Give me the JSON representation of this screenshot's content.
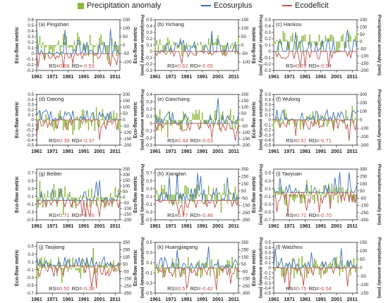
{
  "legend": {
    "precip_label": "Precipitation anomaly",
    "surplus_label": "Ecosurplus",
    "deficit_label": "Ecodeficit",
    "precip_color": "#8db83c",
    "surplus_color": "#3b6fb6",
    "deficit_color": "#c0504d"
  },
  "axis_text": {
    "left_label": "Eco-flow metric",
    "right_label": "Precipitation anomaly (mm)",
    "rs_prefix": "RS=",
    "rd_prefix": "RD="
  },
  "chart_data": [
    {
      "type": "line",
      "title": "(a) Pingshan",
      "rs": "0.69",
      "rd": "-0.53",
      "x_ticks": [
        "1961",
        "1971",
        "1981",
        "1991",
        "2001",
        "2011"
      ],
      "x_range": [
        1961,
        2014
      ],
      "left_ticks": [
        -0.3,
        -0.2,
        -0.1,
        0,
        0.1,
        0.2,
        0.3,
        0.4,
        0.5,
        0.6
      ],
      "left_range": [
        -0.3,
        0.6
      ],
      "right_ticks": [
        -100,
        -50,
        0,
        50,
        100,
        150
      ],
      "right_range": [
        -150,
        150
      ]
    },
    {
      "type": "line",
      "title": "(b) Yichang",
      "rs": "0.62",
      "rd": "-0.65",
      "x_ticks": [
        "1961",
        "1971",
        "1981",
        "1991",
        "2001",
        "2011"
      ],
      "x_range": [
        1961,
        2014
      ],
      "left_ticks": [
        -0.3,
        -0.2,
        -0.1,
        0,
        0.1,
        0.2,
        0.3,
        0.4,
        0.5
      ],
      "left_range": [
        -0.3,
        0.5
      ],
      "right_ticks": [
        -100,
        -50,
        0,
        50,
        100,
        150
      ],
      "right_range": [
        -150,
        150
      ]
    },
    {
      "type": "line",
      "title": "(c) Hankou",
      "rs": "0.70",
      "rd": "-0.54",
      "x_ticks": [
        "1961",
        "1971",
        "1981",
        "1991",
        "2001",
        "2011"
      ],
      "x_range": [
        1961,
        2014
      ],
      "left_ticks": [
        -0.3,
        -0.2,
        -0.1,
        0,
        0.1,
        0.2,
        0.3,
        0.4,
        0.5
      ],
      "left_range": [
        -0.3,
        0.5
      ],
      "right_ticks": [
        -200,
        -150,
        -100,
        -50,
        0,
        50,
        100,
        150
      ],
      "right_range": [
        -200,
        150
      ]
    },
    {
      "type": "line",
      "title": "(d) Datong",
      "rs": "0.39",
      "rd": "-0.37",
      "x_ticks": [
        "1961",
        "1971",
        "1981",
        "1991",
        "2001",
        "2011"
      ],
      "x_range": [
        1961,
        2014
      ],
      "left_ticks": [
        -0.5,
        -0.4,
        -0.3,
        -0.2,
        -0.1,
        0,
        0.1,
        0.2,
        0.3,
        0.4,
        0.5
      ],
      "left_range": [
        -0.5,
        0.5
      ],
      "right_ticks": [
        -200,
        -150,
        -100,
        -50,
        0,
        50,
        100,
        150,
        200
      ],
      "right_range": [
        -200,
        200
      ]
    },
    {
      "type": "line",
      "title": "(e) Gaochang",
      "rs": "0.44",
      "rd": "-0.63",
      "x_ticks": [
        "1961",
        "1971",
        "1981",
        "1991",
        "2001",
        "2011"
      ],
      "x_range": [
        1961,
        2014
      ],
      "left_ticks": [
        -0.3,
        -0.2,
        -0.1,
        0,
        0.1,
        0.2,
        0.3,
        0.4
      ],
      "left_range": [
        -0.3,
        0.4
      ],
      "right_ticks": [
        -200,
        -150,
        -100,
        -50,
        0,
        50,
        100,
        150,
        200
      ],
      "right_range": [
        -200,
        200
      ]
    },
    {
      "type": "line",
      "title": "(f) Wulong",
      "rs": "0.57",
      "rd": "-0.71",
      "x_ticks": [
        "1961",
        "1971",
        "1981",
        "1991",
        "2001",
        "2011"
      ],
      "x_range": [
        1961,
        2014
      ],
      "left_ticks": [
        -0.5,
        -0.4,
        -0.3,
        -0.2,
        -0.1,
        0,
        0.1,
        0.2,
        0.3,
        0.4,
        0.5
      ],
      "left_range": [
        -0.5,
        0.5
      ],
      "right_ticks": [
        -300,
        -200,
        -100,
        0,
        100,
        200,
        300
      ],
      "right_range": [
        -300,
        300
      ]
    },
    {
      "type": "line",
      "title": "(g) Beibei",
      "rs": "0.71",
      "rd": "-0.76",
      "x_ticks": [
        "1961",
        "1971",
        "1981",
        "1991",
        "2001",
        "2011"
      ],
      "x_range": [
        1961,
        2014
      ],
      "left_ticks": [
        -0.5,
        -0.3,
        -0.1,
        0.1,
        0.3,
        0.5,
        0.7
      ],
      "left_range": [
        -0.5,
        0.8
      ],
      "right_ticks": [
        -200,
        -150,
        -100,
        -50,
        0,
        50,
        100,
        150,
        200,
        250
      ],
      "right_range": [
        -200,
        250
      ]
    },
    {
      "type": "line",
      "title": "(h) Xiangtan",
      "rs": "0.77",
      "rd": "-0.46",
      "x_ticks": [
        "1961",
        "1971",
        "1981",
        "1991",
        "2001",
        "2011"
      ],
      "x_range": [
        1961,
        2014
      ],
      "left_ticks": [
        -0.5,
        -0.3,
        -0.1,
        0.1,
        0.3,
        0.5,
        0.7
      ],
      "left_range": [
        -0.5,
        0.8
      ],
      "right_ticks": [
        -350,
        -250,
        -150,
        -50,
        50,
        150,
        250,
        350
      ],
      "right_range": [
        -350,
        350
      ]
    },
    {
      "type": "line",
      "title": "(i) Taoyuan",
      "rs": "0.71",
      "rd": "-0.70",
      "x_ticks": [
        "1961",
        "1971",
        "1981",
        "1991",
        "2001",
        "2011"
      ],
      "x_range": [
        1961,
        2014
      ],
      "left_ticks": [
        -0.7,
        -0.5,
        -0.3,
        -0.1,
        0.1,
        0.3,
        0.5
      ],
      "left_range": [
        -0.7,
        0.6
      ],
      "right_ticks": [
        -350,
        -250,
        -150,
        -50,
        50,
        150,
        250,
        350
      ],
      "right_range": [
        -350,
        350
      ]
    },
    {
      "type": "line",
      "title": "(j) Taojiang",
      "rs": "0.50",
      "rd": "-0.38",
      "x_ticks": [
        "1961",
        "1971",
        "1981",
        "1991",
        "2001",
        "2011"
      ],
      "x_range": [
        1961,
        2014
      ],
      "left_ticks": [
        -0.7,
        -0.5,
        -0.3,
        -0.1,
        0.1,
        0.3,
        0.5
      ],
      "left_range": [
        -0.7,
        0.6
      ],
      "right_ticks": [
        -350,
        -250,
        -150,
        -50,
        50,
        150,
        250,
        350
      ],
      "right_range": [
        -350,
        350
      ]
    },
    {
      "type": "line",
      "title": "(k) Huangjiagang",
      "rs": "0.57",
      "rd": "-0.42",
      "x_ticks": [
        "1961",
        "1971",
        "1981",
        "1991",
        "2001",
        "2011"
      ],
      "x_range": [
        1961,
        2014
      ],
      "left_ticks": [
        -0.5,
        -0.3,
        -0.1,
        0.1,
        0.3,
        0.5
      ],
      "left_range": [
        -0.5,
        0.5
      ],
      "right_ticks": [
        -350,
        -250,
        -150,
        -50,
        50,
        150,
        250,
        350
      ],
      "right_range": [
        -350,
        350
      ]
    },
    {
      "type": "line",
      "title": "(l) Waizhou",
      "rs": "0.75",
      "rd": "-0.54",
      "x_ticks": [
        "1961",
        "1971",
        "1981",
        "1991",
        "2001",
        "2011"
      ],
      "x_range": [
        1961,
        2014
      ],
      "left_ticks": [
        -0.5,
        -0.4,
        -0.3,
        -0.2,
        -0.1,
        0,
        0.1,
        0.2,
        0.3,
        0.4,
        0.5
      ],
      "left_range": [
        -0.5,
        0.5
      ],
      "right_ticks": [
        -150,
        -100,
        -50,
        0,
        50,
        100,
        150
      ],
      "right_range": [
        -150,
        150
      ]
    }
  ]
}
